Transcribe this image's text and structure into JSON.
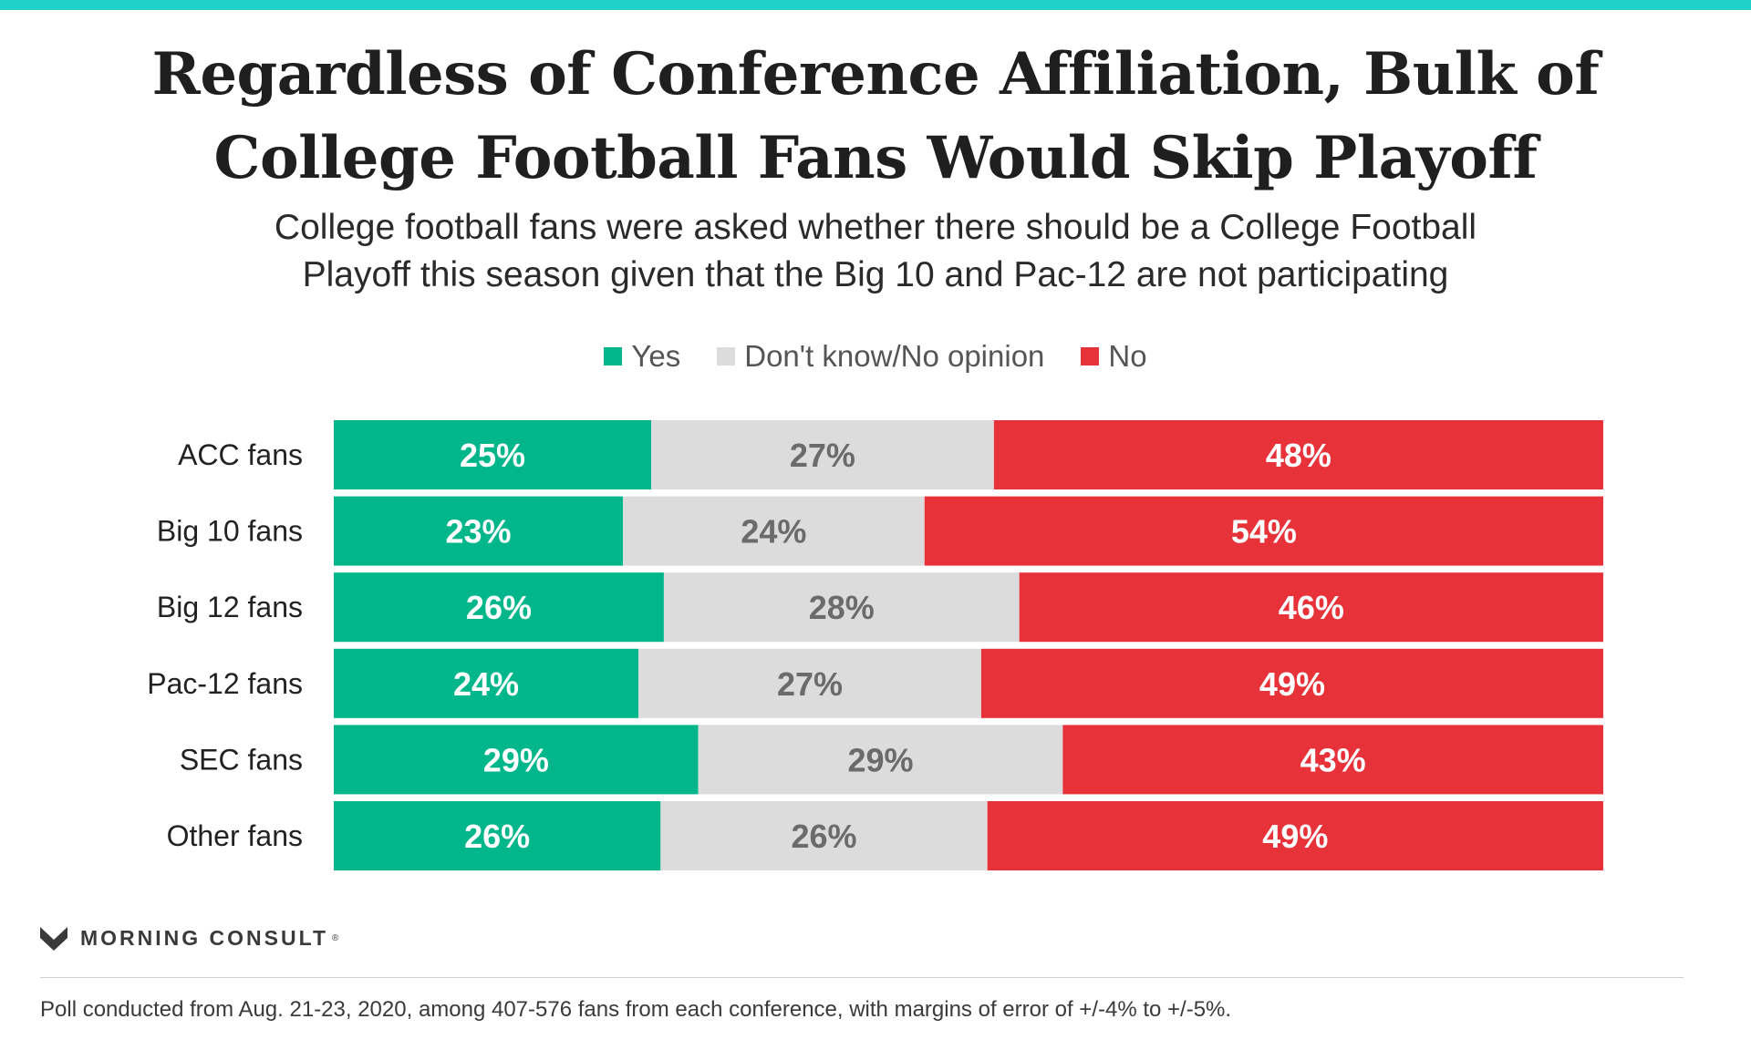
{
  "title_lines": [
    "Regardless of Conference Affiliation, Bulk of",
    "College Football Fans Would Skip Playoff"
  ],
  "subtitle_lines": [
    "College football fans were asked whether there should be a College Football",
    "Playoff this season given that the Big 10 and Pac-12 are not participating"
  ],
  "colors": {
    "accent": "#1fd1c8",
    "yes": "#00b68a",
    "dk": "#dcdcdc",
    "no": "#e8323a",
    "dk_label": "#6b6b6b",
    "brand_mark": "#3a3a3a"
  },
  "brand": {
    "name": "MORNING CONSULT",
    "mark": "®"
  },
  "footnote": "Poll conducted from Aug. 21-23, 2020, among 407-576 fans from each conference, with margins of error of +/-4% to +/-5%.",
  "chart_data": {
    "type": "bar",
    "orientation": "horizontal",
    "stacked": true,
    "percent_suffix": "%",
    "categories": [
      "ACC fans",
      "Big 10 fans",
      "Big 12 fans",
      "Pac-12 fans",
      "SEC fans",
      "Other fans"
    ],
    "series": [
      {
        "name": "Yes",
        "color": "#00b68a",
        "label_color": "#ffffff",
        "values": [
          25,
          23,
          26,
          24,
          29,
          26
        ]
      },
      {
        "name": "Don't know/No opinion",
        "color": "#dcdcdc",
        "label_color": "#6b6b6b",
        "values": [
          27,
          24,
          28,
          27,
          29,
          26
        ]
      },
      {
        "name": "No",
        "color": "#e8323a",
        "label_color": "#ffffff",
        "values": [
          48,
          54,
          46,
          49,
          43,
          49
        ]
      }
    ],
    "legend_position": "top-center",
    "grid": false
  }
}
